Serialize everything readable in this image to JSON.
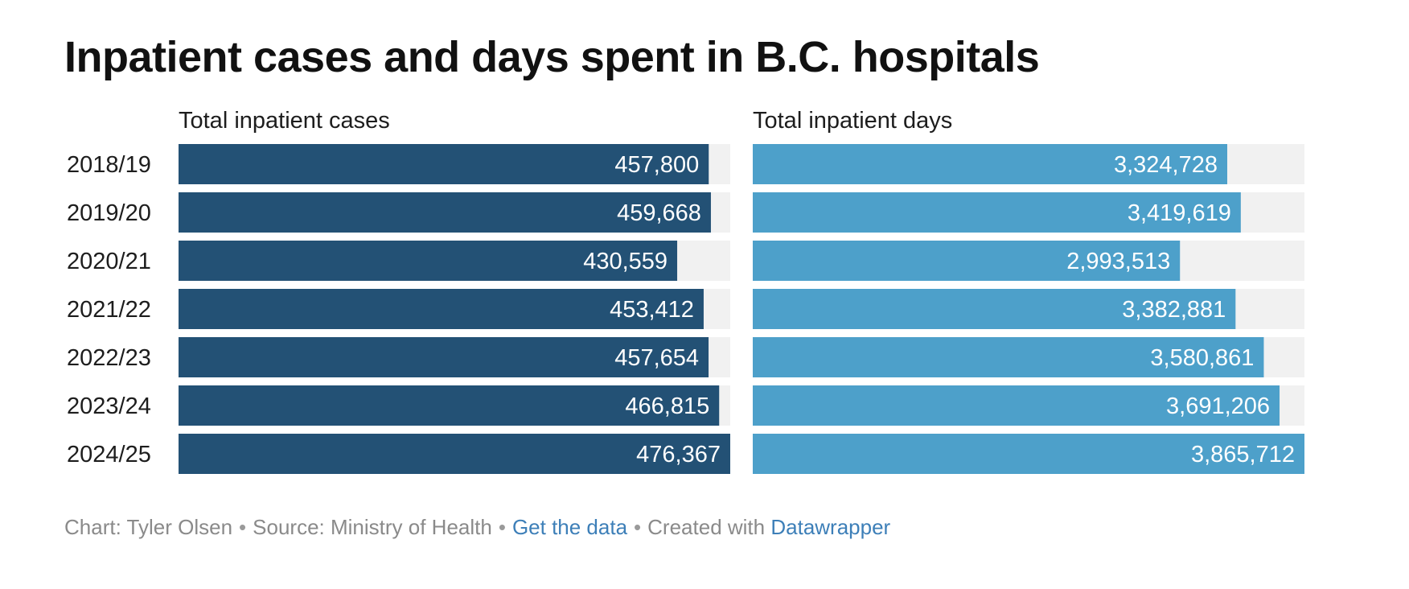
{
  "title": "Inpatient cases and days spent in B.C. hospitals",
  "chart_data": {
    "type": "bar",
    "orientation": "horizontal",
    "title": "Inpatient cases and days spent in B.C. hospitals",
    "categories": [
      "2018/19",
      "2019/20",
      "2020/21",
      "2021/22",
      "2022/23",
      "2023/24",
      "2024/25"
    ],
    "series": [
      {
        "name": "Total inpatient cases",
        "values": [
          457800,
          459668,
          430559,
          453412,
          457654,
          466815,
          476367
        ],
        "labels": [
          "457,800",
          "459,668",
          "430,559",
          "453,412",
          "457,654",
          "466,815",
          "476,367"
        ],
        "color": "#235175",
        "max": 476367
      },
      {
        "name": "Total inpatient days",
        "values": [
          3324728,
          3419619,
          2993513,
          3382881,
          3580861,
          3691206,
          3865712
        ],
        "labels": [
          "3,324,728",
          "3,419,619",
          "2,993,513",
          "3,382,881",
          "3,580,861",
          "3,691,206",
          "3,865,712"
        ],
        "color": "#4da0ca",
        "max": 3865712
      }
    ],
    "track_color": "#f1f1f1"
  },
  "footer": {
    "chart_by": "Chart: Tyler Olsen",
    "separator": "•",
    "source": "Source: Ministry of Health",
    "get_data_link": "Get the data",
    "created_with": "Created with",
    "tool_link": "Datawrapper",
    "link_color": "#3d7fb8"
  }
}
